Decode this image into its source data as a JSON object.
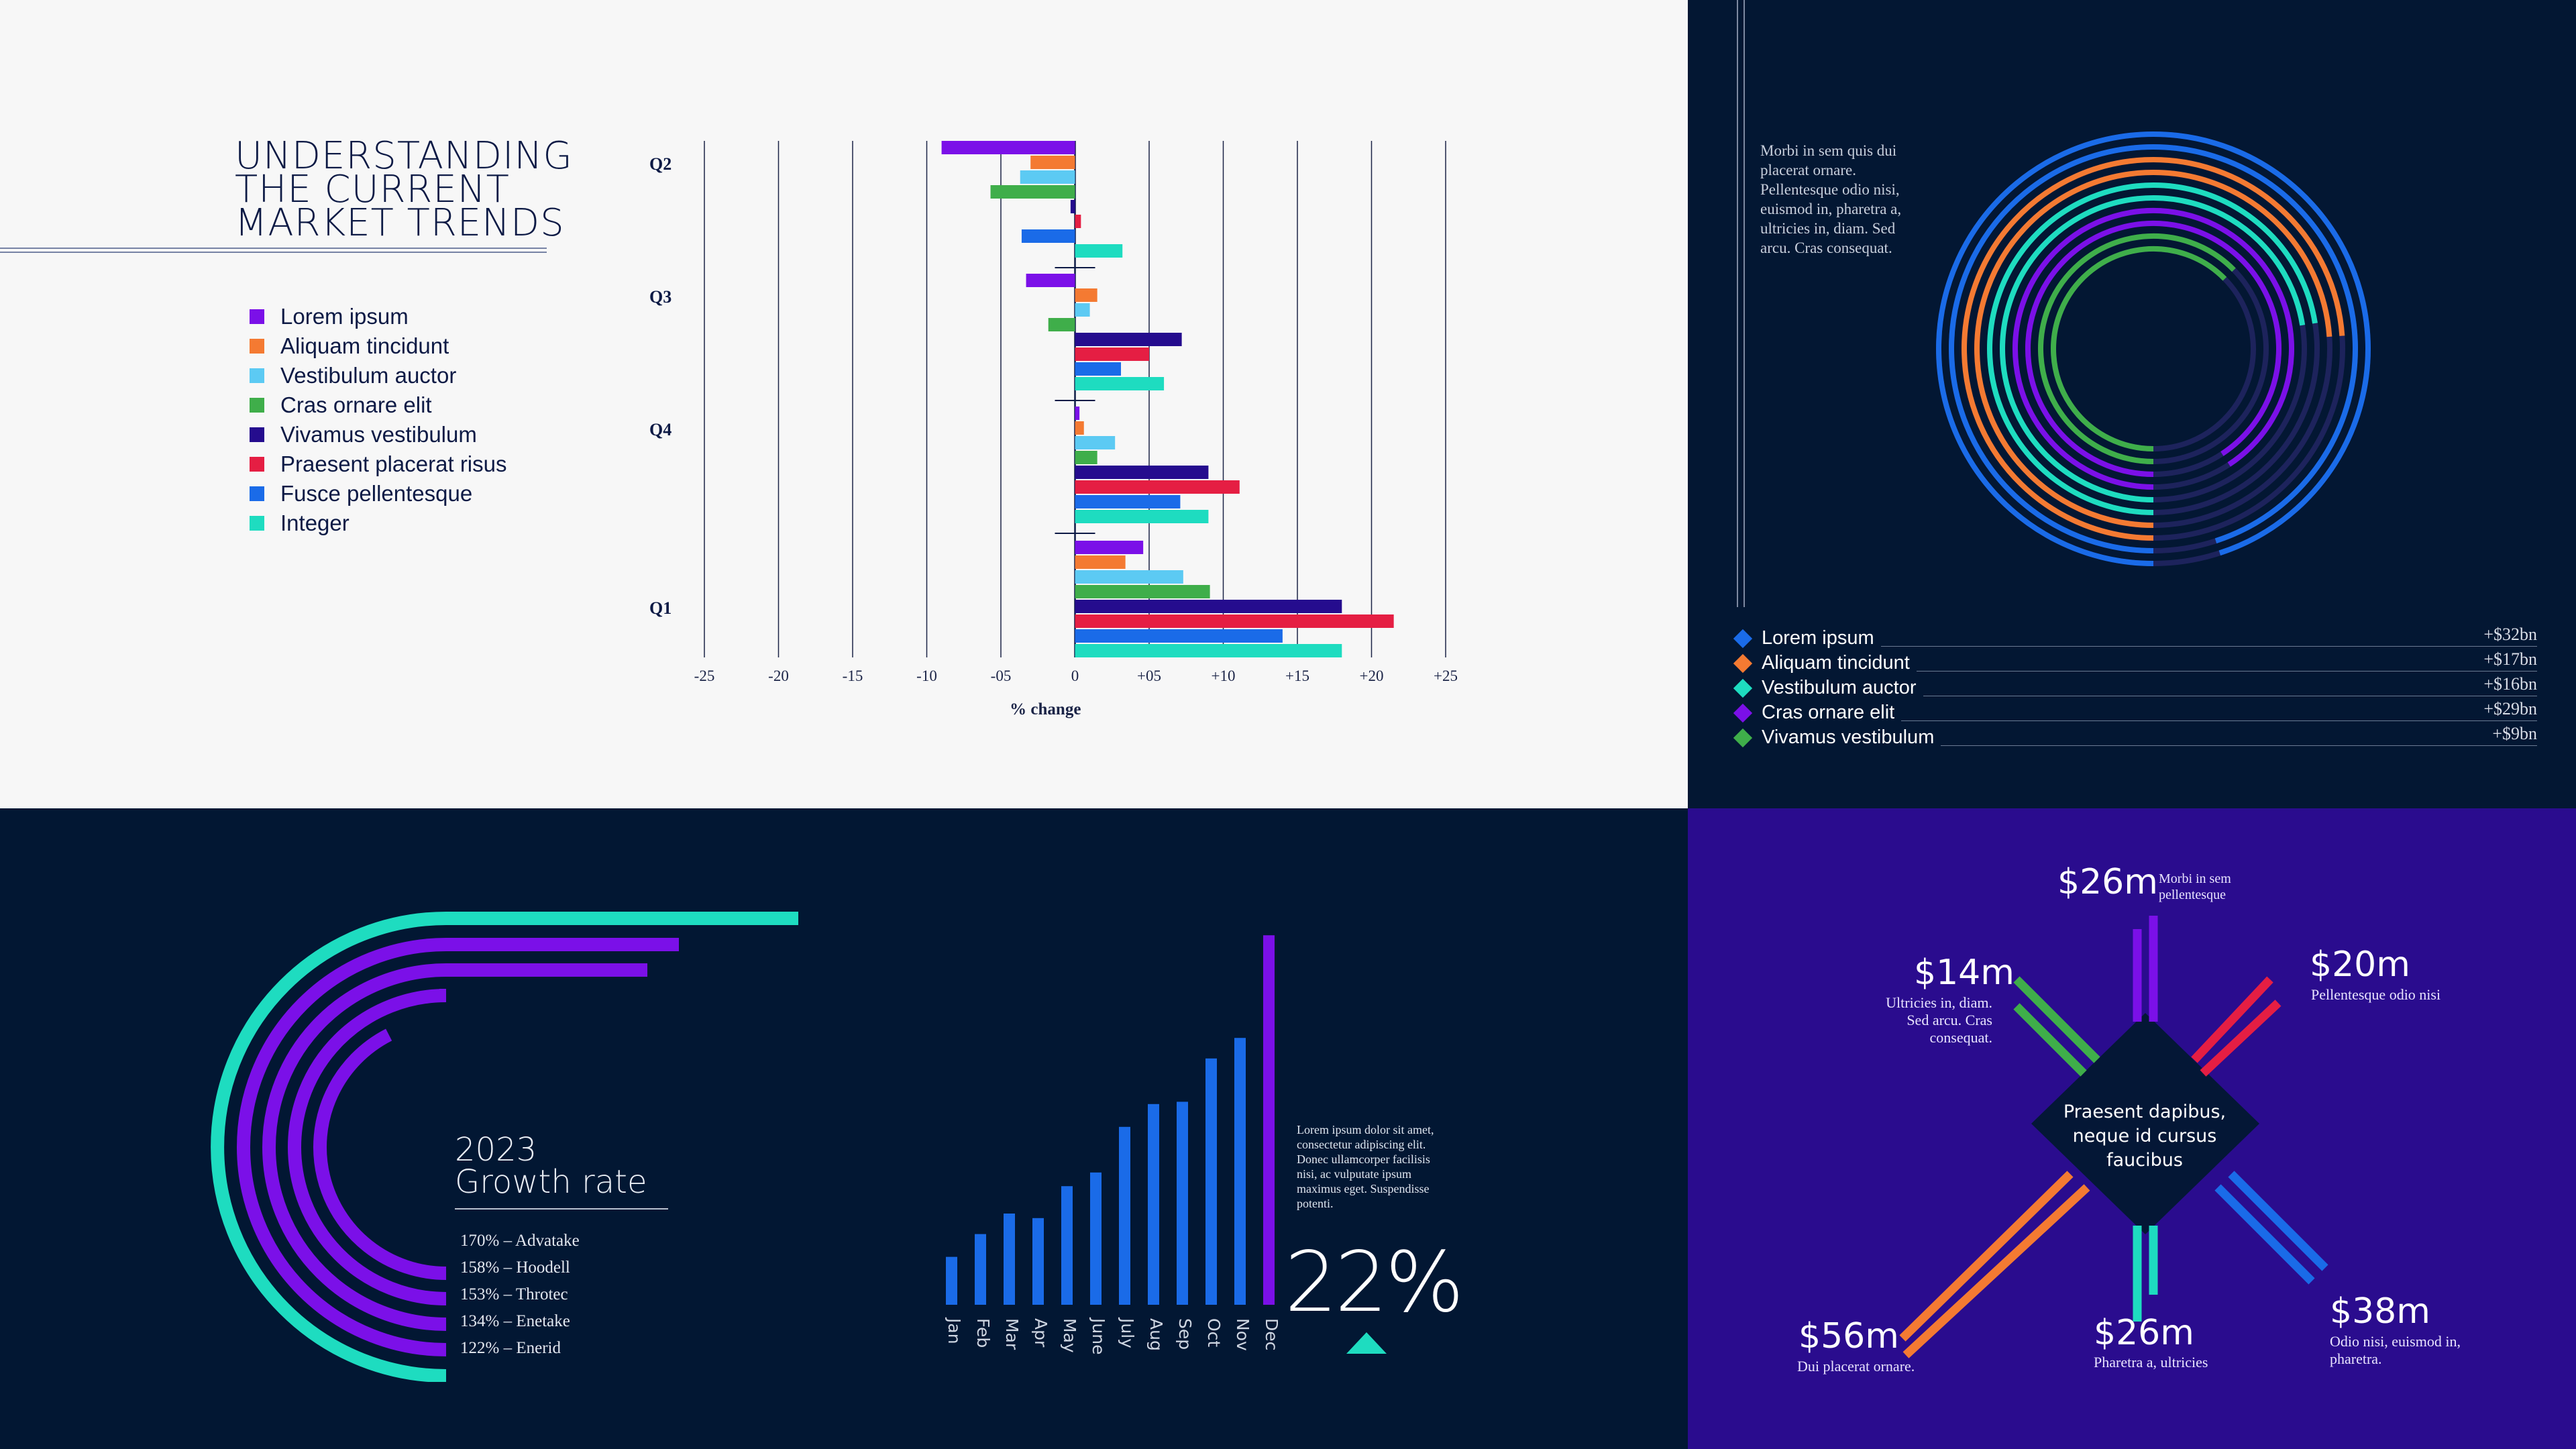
{
  "top_left": {
    "title_lines": [
      "UNDERSTANDING",
      "THE CURRENT",
      "MARKET TRENDS"
    ],
    "legend": [
      {
        "label": "Lorem ipsum",
        "color": "#7b10e8"
      },
      {
        "label": "Aliquam tincidunt",
        "color": "#f47a32"
      },
      {
        "label": "Vestibulum auctor",
        "color": "#5ccaf3"
      },
      {
        "label": "Cras ornare elit",
        "color": "#3fae4a"
      },
      {
        "label": "Vivamus vestibulum",
        "color": "#250c8e"
      },
      {
        "label": "Praesent placerat risus",
        "color": "#e51e43"
      },
      {
        "label": "Fusce pellentesque",
        "color": "#1a6be8"
      },
      {
        "label": "Integer",
        "color": "#1edcc0"
      }
    ]
  },
  "top_right": {
    "text": "Morbi in sem quis dui placerat ornare. Pellentesque odio nisi, euismod in, pharetra a, ultricies in, diam. Sed arcu. Cras consequat.",
    "legend": [
      {
        "label": "Lorem ipsum",
        "value": "+$32bn",
        "color": "#1a6be8"
      },
      {
        "label": "Aliquam tincidunt",
        "value": "+$17bn",
        "color": "#f47a32"
      },
      {
        "label": "Vestibulum auctor",
        "value": "+$16bn",
        "color": "#1edcc0"
      },
      {
        "label": "Cras ornare elit",
        "value": "+$29bn",
        "color": "#7b10e8"
      },
      {
        "label": "Vivamus vestibulum",
        "value": "+$9bn",
        "color": "#3fae4a"
      }
    ]
  },
  "bottom_left": {
    "title_lines": [
      "2023",
      "Growth rate"
    ],
    "items": [
      "170% – Advatake",
      "158% – Hoodell",
      "153% – Throtec",
      "134% – Enetake",
      "122% – Enerid"
    ],
    "text": "Lorem ipsum dolor sit amet, consectetur adipiscing elit. Donec ullamcorper facilisis nisi, ac vulputate ipsum maximus eget. Suspendisse potenti.",
    "big_value": "22%"
  },
  "bottom_right": {
    "center": "Praesent dapibus, neque id cursus faucibus",
    "items": [
      {
        "amount": "$26m",
        "caption": "Morbi in sem pellentesque"
      },
      {
        "amount": "$20m",
        "caption": "Pellentesque odio nisi"
      },
      {
        "amount": "$14m",
        "caption": "Ultricies in, diam. Sed arcu. Cras consequat."
      },
      {
        "amount": "$38m",
        "caption": "Odio nisi, euismod in, pharetra."
      },
      {
        "amount": "$26m",
        "caption": "Pharetra a, ultricies"
      },
      {
        "amount": "$56m",
        "caption": "Dui placerat ornare."
      }
    ]
  },
  "chart_data": [
    {
      "type": "bar",
      "orientation": "horizontal",
      "xlabel": "% change",
      "xlim": [
        -25,
        25
      ],
      "ticks": [
        "-25",
        "-20",
        "-15",
        "-10",
        "-05",
        "0",
        "+05",
        "+10",
        "+15",
        "+20",
        "+25"
      ],
      "categories": [
        "Q2",
        "Q3",
        "Q4",
        "Q1"
      ],
      "series": [
        {
          "name": "Lorem ipsum",
          "values": [
            -9,
            -3.3,
            0.3,
            4.6
          ]
        },
        {
          "name": "Aliquam tincidunt",
          "values": [
            -3,
            1.5,
            0.6,
            3.4
          ]
        },
        {
          "name": "Vestibulum auctor",
          "values": [
            -3.7,
            1,
            2.7,
            7.3
          ]
        },
        {
          "name": "Cras ornare elit",
          "values": [
            -5.7,
            -1.8,
            1.5,
            9.1
          ]
        },
        {
          "name": "Vivamus vestibulum",
          "values": [
            -0.3,
            7.2,
            9,
            18
          ]
        },
        {
          "name": "Praesent placerat risus",
          "values": [
            0.4,
            5,
            11.1,
            21.5
          ]
        },
        {
          "name": "Fusce pellentesque",
          "values": [
            -3.6,
            3.1,
            7.1,
            14
          ]
        },
        {
          "name": "Integer",
          "values": [
            3.2,
            6,
            9,
            18
          ]
        }
      ]
    },
    {
      "type": "radial",
      "series": [
        {
          "name": "Lorem ipsum",
          "value": 32
        },
        {
          "name": "Aliquam tincidunt",
          "value": 17
        },
        {
          "name": "Vestibulum auctor",
          "value": 16
        },
        {
          "name": "Cras ornare elit",
          "value": 29
        },
        {
          "name": "Vivamus vestibulum",
          "value": 9
        }
      ]
    },
    {
      "type": "radial",
      "categories": [
        "Advatake",
        "Hoodell",
        "Throtec",
        "Enetake",
        "Enerid"
      ],
      "values": [
        170,
        158,
        153,
        134,
        122
      ]
    },
    {
      "type": "bar",
      "categories": [
        "Jan",
        "Feb",
        "Mar",
        "Apr",
        "May",
        "June",
        "July",
        "Aug",
        "Sep",
        "Oct",
        "Nov",
        "Dec"
      ],
      "values": [
        21,
        31,
        40,
        38,
        52,
        58,
        78,
        88,
        89,
        108,
        117,
        162
      ]
    }
  ]
}
